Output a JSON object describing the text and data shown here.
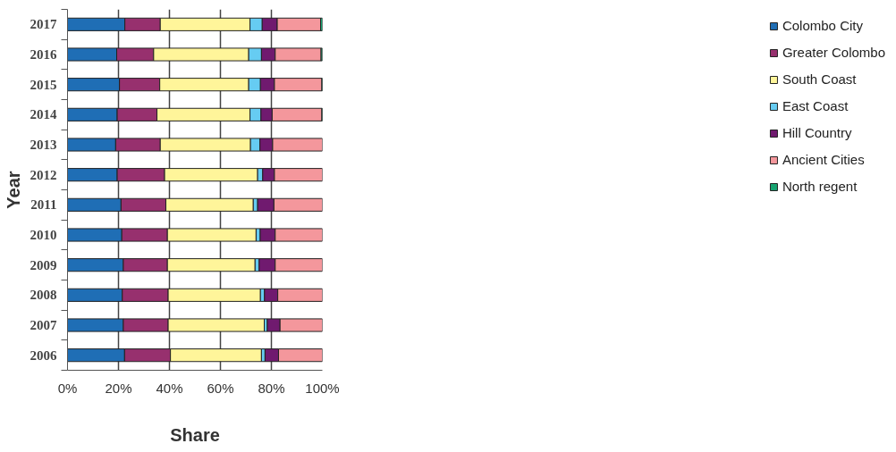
{
  "chart_data": {
    "type": "bar",
    "orientation": "horizontal",
    "stacked": true,
    "xlabel": "Share",
    "ylabel": "Year",
    "categories": [
      "2017",
      "2016",
      "2015",
      "2014",
      "2013",
      "2012",
      "2011",
      "2010",
      "2009",
      "2008",
      "2007",
      "2006"
    ],
    "xlim": [
      0,
      100
    ],
    "xticks": [
      {
        "value": 0,
        "label": "0%"
      },
      {
        "value": 20,
        "label": "20%"
      },
      {
        "value": 40,
        "label": "40%"
      },
      {
        "value": 60,
        "label": "60%"
      },
      {
        "value": 80,
        "label": "80%"
      },
      {
        "value": 100,
        "label": "100%"
      }
    ],
    "grid": "x",
    "legend": "right",
    "series": [
      {
        "name": "Colombo City",
        "color": "#1f6eb5",
        "values": [
          22.5,
          19.3,
          20.4,
          19.5,
          18.9,
          19.5,
          21.0,
          21.3,
          21.9,
          21.5,
          21.9,
          22.4
        ]
      },
      {
        "name": "Greater Colombo",
        "color": "#97306e",
        "values": [
          13.9,
          14.5,
          15.8,
          15.6,
          17.5,
          18.6,
          17.6,
          17.9,
          17.3,
          18.0,
          17.6,
          18.0
        ]
      },
      {
        "name": "South Coast",
        "color": "#fff59a",
        "values": [
          35.2,
          37.3,
          34.9,
          36.5,
          35.4,
          36.5,
          34.3,
          34.8,
          34.4,
          36.2,
          37.7,
          35.7
        ]
      },
      {
        "name": "East Coast",
        "color": "#66ccf2",
        "values": [
          4.8,
          5.0,
          4.6,
          4.3,
          3.7,
          2.0,
          1.7,
          1.6,
          1.6,
          1.6,
          1.2,
          1.4
        ]
      },
      {
        "name": "Hill Country",
        "color": "#701a6f",
        "values": [
          5.9,
          5.4,
          5.5,
          4.4,
          5.0,
          4.6,
          6.4,
          5.9,
          6.3,
          5.2,
          5.0,
          5.3
        ]
      },
      {
        "name": "Ancient Cities",
        "color": "#f4979c",
        "values": [
          17.0,
          18.0,
          18.6,
          19.5,
          19.5,
          18.8,
          19.0,
          18.5,
          18.5,
          17.5,
          16.6,
          17.2
        ]
      },
      {
        "name": "North regent",
        "color": "#17a370",
        "values": [
          0.7,
          0.5,
          0.2,
          0.2,
          0,
          0,
          0,
          0,
          0,
          0,
          0,
          0
        ]
      }
    ]
  }
}
